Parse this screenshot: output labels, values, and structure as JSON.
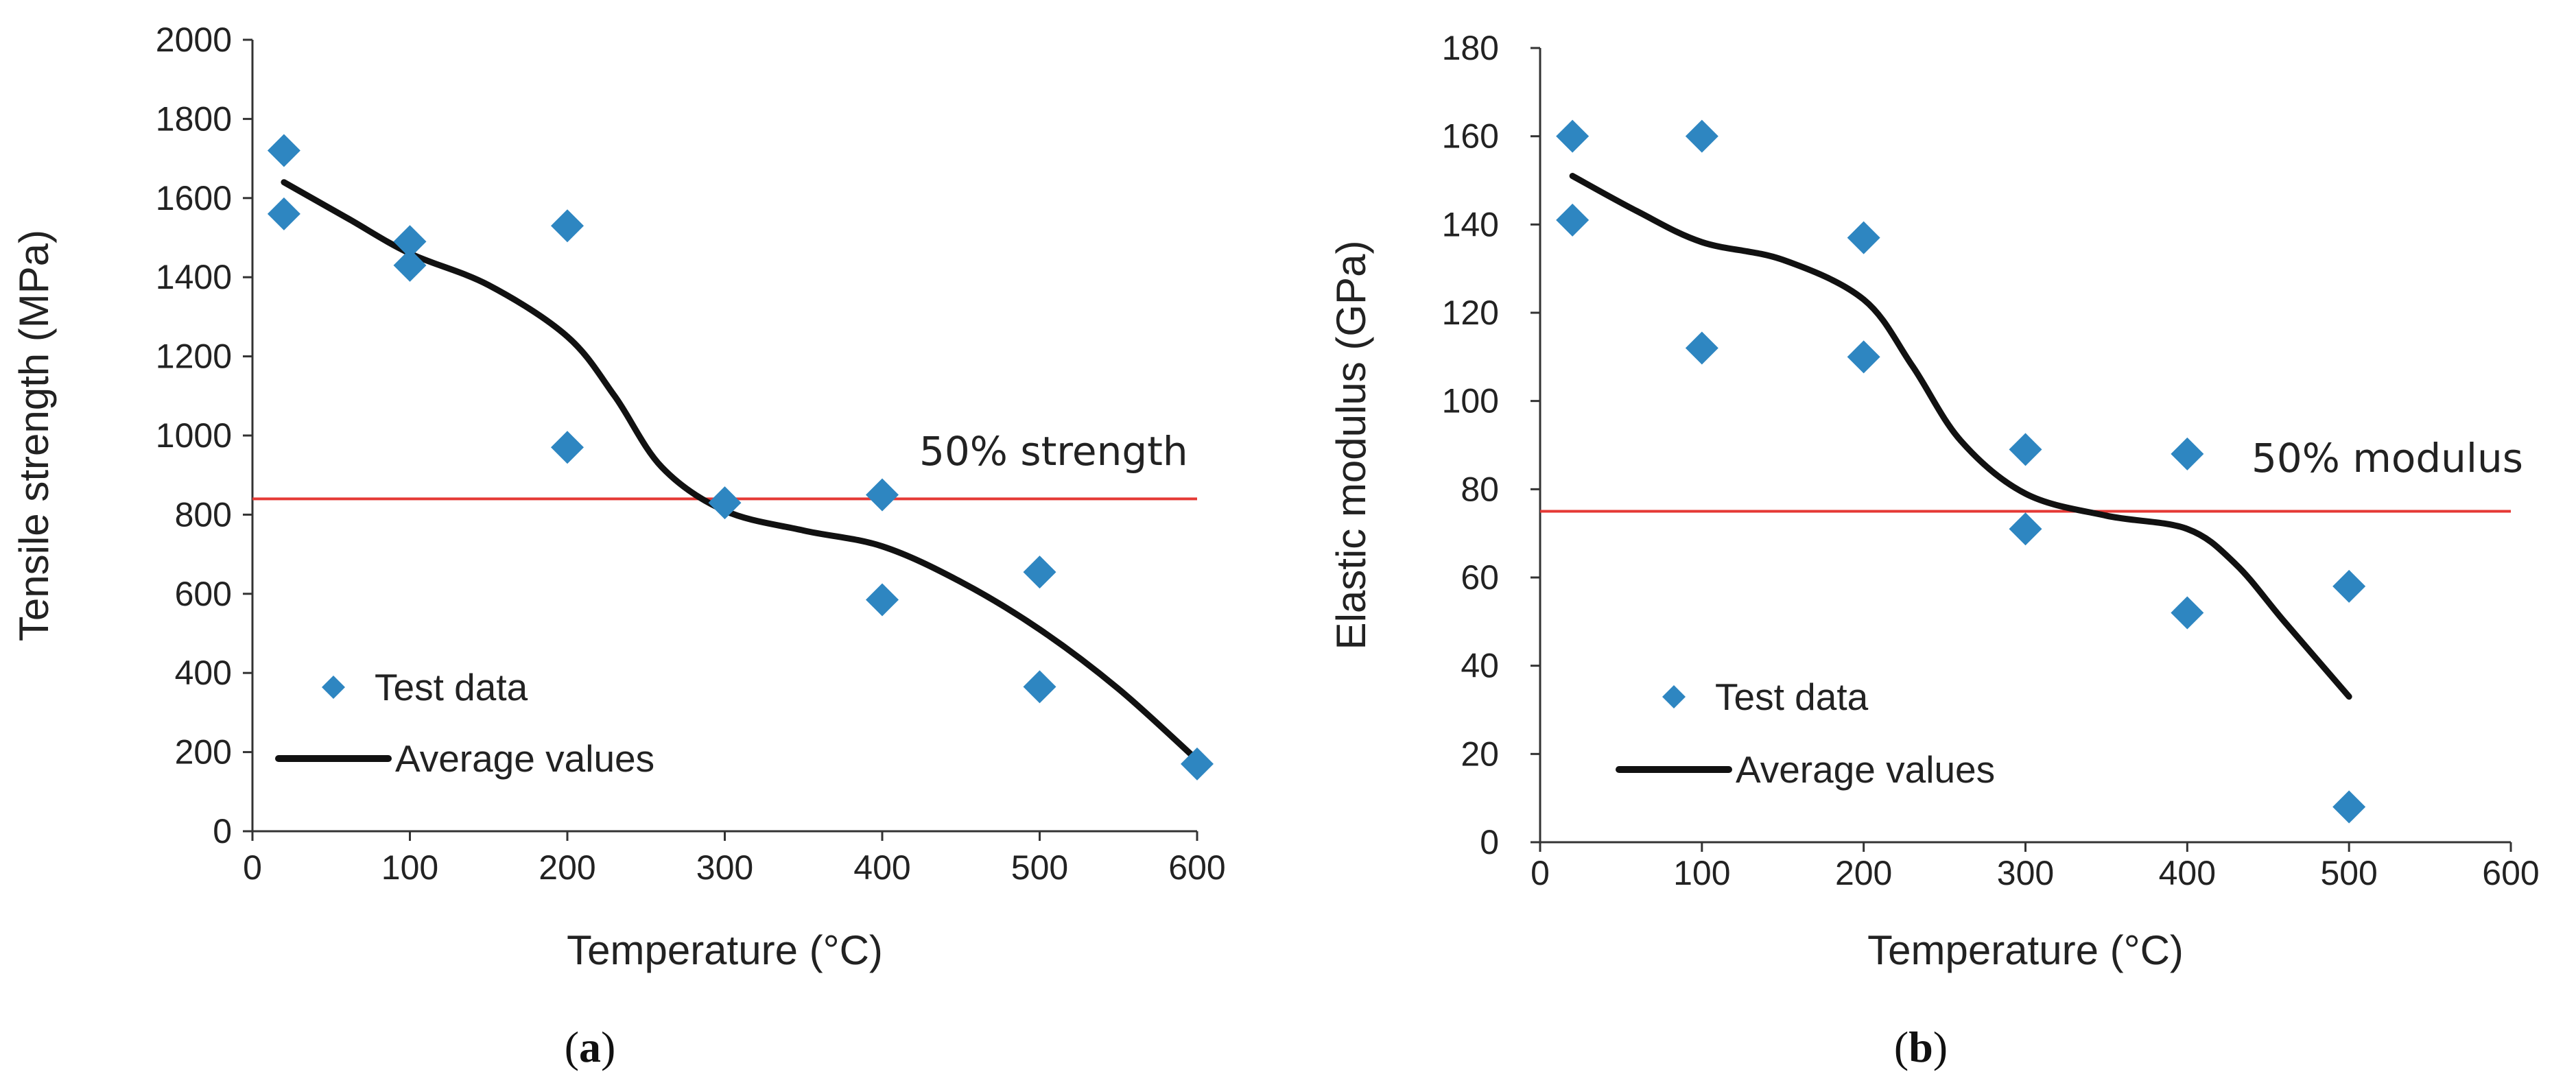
{
  "chart_data": [
    {
      "type": "scatter",
      "panel_caption": "a",
      "xlabel": "Temperature (°C)",
      "ylabel": "Tensile strength (MPa)",
      "xlim": [
        0,
        600
      ],
      "ylim": [
        0,
        2000
      ],
      "x_ticks": [
        0,
        100,
        200,
        300,
        400,
        500,
        600
      ],
      "y_ticks": [
        0,
        200,
        400,
        600,
        800,
        1000,
        1200,
        1400,
        1600,
        1800,
        2000
      ],
      "grid": false,
      "legend_position": "lower-left",
      "series": [
        {
          "name": "Test data",
          "kind": "scatter",
          "marker": "diamond",
          "color": "#2e86c1",
          "x": [
            20,
            20,
            100,
            100,
            200,
            200,
            300,
            400,
            400,
            500,
            500,
            600
          ],
          "y": [
            1720,
            1560,
            1490,
            1430,
            1530,
            970,
            830,
            850,
            585,
            655,
            365,
            170
          ]
        },
        {
          "name": "Average values",
          "kind": "line",
          "color": "#111111",
          "x": [
            20,
            60,
            100,
            150,
            200,
            230,
            260,
            300,
            350,
            400,
            450,
            500,
            550,
            600
          ],
          "y": [
            1640,
            1550,
            1460,
            1380,
            1250,
            1100,
            920,
            810,
            760,
            720,
            630,
            510,
            360,
            180
          ]
        }
      ],
      "threshold": {
        "label": "50% strength",
        "y": 840,
        "color": "#e53935"
      }
    },
    {
      "type": "scatter",
      "panel_caption": "b",
      "xlabel": "Temperature (°C)",
      "ylabel": "Elastic modulus (GPa)",
      "xlim": [
        0,
        600
      ],
      "ylim": [
        0,
        180
      ],
      "x_ticks": [
        0,
        100,
        200,
        300,
        400,
        500,
        600
      ],
      "y_ticks": [
        0,
        20,
        40,
        60,
        80,
        100,
        120,
        140,
        160,
        180
      ],
      "grid": false,
      "legend_position": "lower-left",
      "series": [
        {
          "name": "Test data",
          "kind": "scatter",
          "marker": "diamond",
          "color": "#2e86c1",
          "x": [
            20,
            20,
            100,
            100,
            200,
            200,
            300,
            300,
            400,
            400,
            500,
            500
          ],
          "y": [
            160,
            141,
            160,
            112,
            137,
            110,
            89,
            71,
            88,
            52,
            58,
            8
          ]
        },
        {
          "name": "Average values",
          "kind": "line",
          "color": "#111111",
          "x": [
            20,
            60,
            100,
            150,
            200,
            230,
            260,
            300,
            350,
            400,
            430,
            460,
            500
          ],
          "y": [
            151,
            143,
            136,
            132,
            123,
            108,
            91,
            79,
            74,
            71,
            63,
            50,
            33
          ]
        }
      ],
      "threshold": {
        "label": "50% modulus",
        "y": 75,
        "color": "#e53935"
      }
    }
  ]
}
